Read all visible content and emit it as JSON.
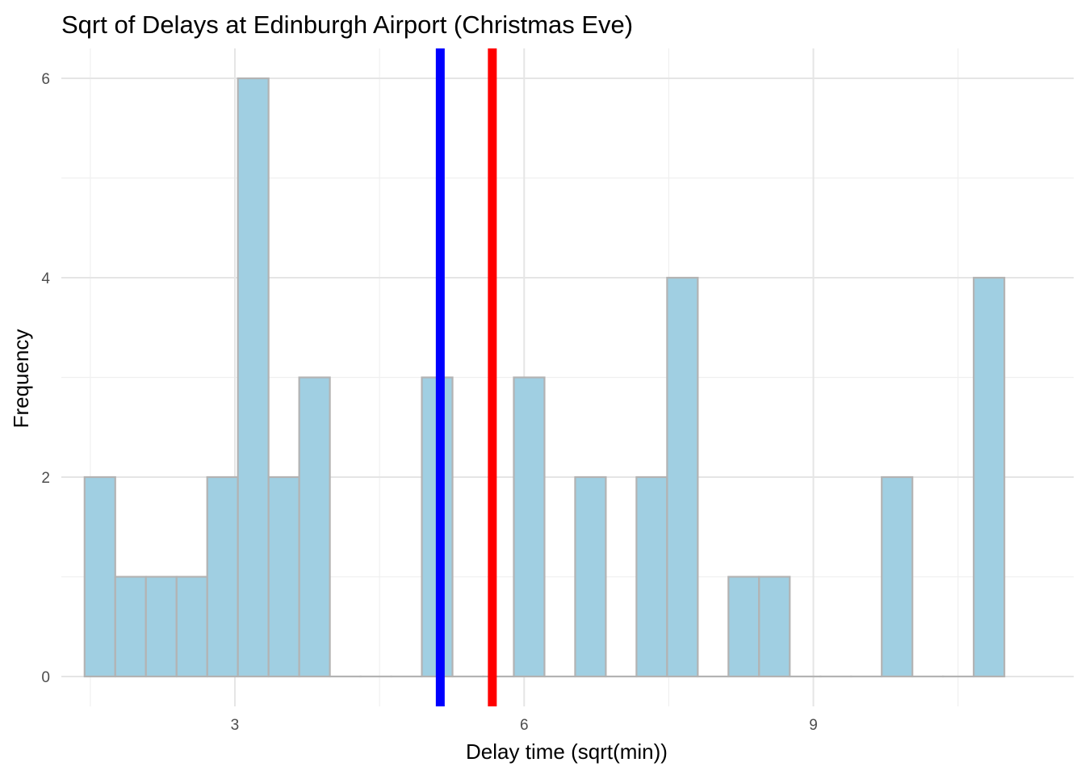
{
  "chart_data": {
    "type": "bar",
    "title": "Sqrt of Delays at Edinburgh Airport (Christmas Eve)",
    "xlabel": "Delay time (sqrt(min))",
    "ylabel": "Frequency",
    "xlim": [
      1.2,
      11.7
    ],
    "ylim": [
      -0.3,
      6.3
    ],
    "x_ticks": [
      3,
      6,
      9
    ],
    "y_ticks": [
      0,
      2,
      4,
      6
    ],
    "grid": true,
    "legend": "none",
    "bin_width": 0.318,
    "bins": [
      {
        "x": 1.6,
        "count": 2
      },
      {
        "x": 1.918,
        "count": 1
      },
      {
        "x": 2.236,
        "count": 1
      },
      {
        "x": 2.554,
        "count": 1
      },
      {
        "x": 2.872,
        "count": 2
      },
      {
        "x": 3.19,
        "count": 6
      },
      {
        "x": 3.508,
        "count": 2
      },
      {
        "x": 3.826,
        "count": 3
      },
      {
        "x": 4.144,
        "count": 0
      },
      {
        "x": 4.462,
        "count": 0
      },
      {
        "x": 4.78,
        "count": 0
      },
      {
        "x": 5.098,
        "count": 3
      },
      {
        "x": 5.416,
        "count": 0
      },
      {
        "x": 5.734,
        "count": 0
      },
      {
        "x": 6.052,
        "count": 3
      },
      {
        "x": 6.37,
        "count": 0
      },
      {
        "x": 6.688,
        "count": 2
      },
      {
        "x": 7.006,
        "count": 0
      },
      {
        "x": 7.324,
        "count": 2
      },
      {
        "x": 7.642,
        "count": 4
      },
      {
        "x": 7.96,
        "count": 0
      },
      {
        "x": 8.278,
        "count": 1
      },
      {
        "x": 8.596,
        "count": 1
      },
      {
        "x": 8.914,
        "count": 0
      },
      {
        "x": 9.232,
        "count": 0
      },
      {
        "x": 9.55,
        "count": 0
      },
      {
        "x": 9.868,
        "count": 2
      },
      {
        "x": 10.186,
        "count": 0
      },
      {
        "x": 10.504,
        "count": 0
      },
      {
        "x": 10.822,
        "count": 4
      }
    ],
    "reference_lines": [
      {
        "x": 5.13,
        "color": "#0000ff"
      },
      {
        "x": 5.67,
        "color": "#ff0000"
      }
    ],
    "colors": {
      "bar_fill": "#a0cfe2",
      "bar_stroke": "#b3b3b3",
      "grid_major": "#e5e5e5",
      "grid_minor": "#f0f0f0"
    }
  }
}
